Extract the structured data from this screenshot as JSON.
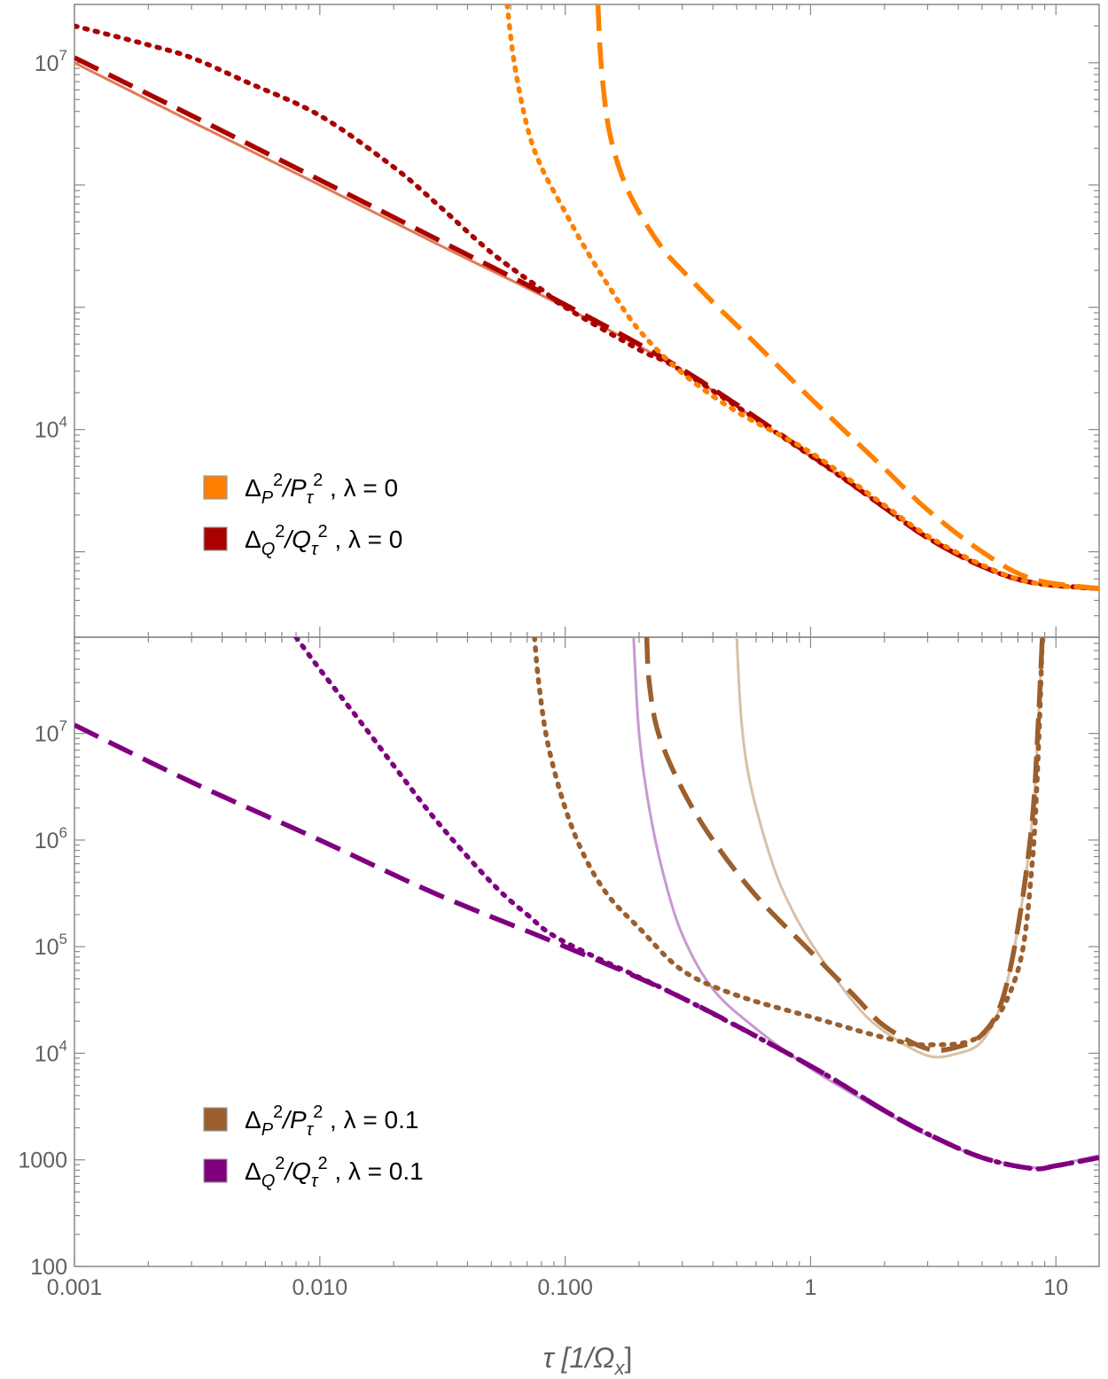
{
  "chart_data": [
    {
      "panel": "top",
      "type": "line",
      "xscale": "log",
      "yscale": "log",
      "xlim": [
        0.001,
        15
      ],
      "ylim": [
        200,
        30000000
      ],
      "x_ticks": [
        "0.001",
        "0.010",
        "0.100",
        "1",
        "10"
      ],
      "y_tick_labels": [
        {
          "value": 10000000,
          "base": "10",
          "exp": "7"
        },
        {
          "value": 10000,
          "base": "10",
          "exp": "4"
        }
      ],
      "legend": [
        {
          "label_base": "Δ",
          "label_sub": "P",
          "label_sup": "2",
          "label_den": "/P",
          "label_den_sub": "τ",
          "label_den_sup": "2",
          "label_param": " , λ = 0",
          "color": "#ff8000"
        },
        {
          "label_base": "Δ",
          "label_sub": "Q",
          "label_sup": "2",
          "label_den": "/Q",
          "label_den_sub": "τ",
          "label_den_sup": "2",
          "label_param": " , λ = 0",
          "color": "#aa0000"
        }
      ],
      "series": [
        {
          "name": "reference solid",
          "color": "#e07a5a",
          "style": "solid",
          "x": [
            0.001,
            0.003,
            0.01,
            0.03,
            0.1,
            0.3,
            1,
            2,
            3,
            5,
            8,
            15
          ],
          "y": [
            10000000,
            3300000,
            1000000,
            330000,
            100000,
            30000,
            6000,
            2300,
            1300,
            750,
            550,
            500
          ]
        },
        {
          "name": "Q dashed",
          "color": "#aa0000",
          "style": "dashed",
          "x": [
            0.001,
            0.003,
            0.01,
            0.03,
            0.1,
            0.3,
            1,
            2,
            3,
            5,
            8,
            15
          ],
          "y": [
            11000000,
            3700000,
            1100000,
            360000,
            105000,
            31000,
            6200,
            2300,
            1300,
            760,
            560,
            500
          ]
        },
        {
          "name": "Q dotted",
          "color": "#aa0000",
          "style": "dotted",
          "x": [
            0.001,
            0.002,
            0.003,
            0.005,
            0.01,
            0.02,
            0.03,
            0.05,
            0.08,
            0.1,
            0.2,
            0.3,
            1,
            2,
            3,
            5,
            8,
            15
          ],
          "y": [
            20000000,
            14000000,
            11000000,
            7000000,
            3700000,
            1400000,
            700000,
            280000,
            140000,
            100000,
            45000,
            30000,
            6100,
            2300,
            1300,
            760,
            560,
            500
          ]
        },
        {
          "name": "P dotted",
          "color": "#ff8000",
          "style": "dotted",
          "x": [
            0.058,
            0.062,
            0.07,
            0.08,
            0.1,
            0.12,
            0.15,
            0.2,
            0.3,
            0.5,
            1,
            2,
            3,
            5,
            8,
            15
          ],
          "y": [
            30000000,
            10000000,
            3000000,
            1400000,
            600000,
            310000,
            150000,
            65000,
            29000,
            14000,
            6500,
            2400,
            1350,
            780,
            560,
            500
          ]
        },
        {
          "name": "P dashed",
          "color": "#ff8000",
          "style": "dashed",
          "x": [
            0.136,
            0.14,
            0.15,
            0.17,
            0.2,
            0.25,
            0.3,
            0.4,
            0.6,
            1,
            2,
            3,
            5,
            8,
            15
          ],
          "y": [
            30000000,
            10000000,
            3000000,
            1200000,
            600000,
            300000,
            200000,
            110000,
            50000,
            18000,
            4800,
            2200,
            1000,
            600,
            500
          ]
        }
      ]
    },
    {
      "panel": "bottom",
      "type": "line",
      "xscale": "log",
      "yscale": "log",
      "xlim": [
        0.001,
        15
      ],
      "ylim": [
        100,
        80000000
      ],
      "x_ticks": [
        "0.001",
        "0.010",
        "0.100",
        "1",
        "10"
      ],
      "y_tick_labels": [
        {
          "value": 10000000,
          "base": "10",
          "exp": "7"
        },
        {
          "value": 1000000,
          "base": "10",
          "exp": "6"
        },
        {
          "value": 100000,
          "base": "10",
          "exp": "5"
        },
        {
          "value": 10000,
          "base": "10",
          "exp": "4"
        },
        {
          "value": 1000,
          "base": "1000",
          "exp": ""
        },
        {
          "value": 100,
          "base": "100",
          "exp": ""
        }
      ],
      "legend": [
        {
          "label_base": "Δ",
          "label_sub": "P",
          "label_sup": "2",
          "label_den": "/P",
          "label_den_sub": "τ",
          "label_den_sup": "2",
          "label_param": " , λ = 0.1",
          "color": "#9b5f2e"
        },
        {
          "label_base": "Δ",
          "label_sub": "Q",
          "label_sup": "2",
          "label_den": "/Q",
          "label_den_sub": "τ",
          "label_den_sup": "2",
          "label_param": " , λ = 0.1",
          "color": "#7f007f"
        }
      ],
      "series": [
        {
          "name": "Q solid light",
          "color": "#c899d1",
          "style": "solid",
          "x": [
            0.19,
            0.2,
            0.22,
            0.25,
            0.3,
            0.4,
            0.6,
            1,
            2,
            3,
            5,
            8,
            10,
            15
          ],
          "y": [
            80000000,
            10000000,
            2000000,
            500000,
            130000,
            40000,
            17000,
            7200,
            2800,
            1700,
            1050,
            850,
            900,
            1100
          ]
        },
        {
          "name": "P solid light",
          "color": "#d9c0a6",
          "style": "solid",
          "x": [
            0.5,
            0.52,
            0.55,
            0.6,
            0.7,
            0.8,
            1,
            1.5,
            2,
            3,
            4,
            5,
            6,
            7,
            8,
            8.5,
            8.8
          ],
          "y": [
            80000000,
            15000000,
            5000000,
            2000000,
            600000,
            280000,
            110000,
            30000,
            16000,
            9500,
            10000,
            13000,
            30000,
            150000,
            1500000,
            15000000,
            80000000
          ]
        },
        {
          "name": "Q dashed",
          "color": "#7f007f",
          "style": "dashed",
          "x": [
            0.001,
            0.003,
            0.01,
            0.03,
            0.1,
            0.3,
            1,
            2,
            3,
            5,
            8,
            10,
            15
          ],
          "y": [
            12000000,
            3500000,
            1000000,
            310000,
            100000,
            33000,
            7600,
            2900,
            1750,
            1050,
            830,
            880,
            1050
          ]
        },
        {
          "name": "Q dotted",
          "color": "#7f007f",
          "style": "dotted",
          "x": [
            0.008,
            0.01,
            0.015,
            0.02,
            0.03,
            0.05,
            0.07,
            0.1,
            0.3,
            1,
            2,
            3,
            5,
            8,
            10,
            15
          ],
          "y": [
            80000000,
            40000000,
            12000000,
            5000000,
            1500000,
            400000,
            200000,
            110000,
            33000,
            7600,
            2900,
            1750,
            1050,
            830,
            880,
            1050
          ]
        },
        {
          "name": "P dotted",
          "color": "#9b5f2e",
          "style": "dotted",
          "x": [
            0.075,
            0.078,
            0.085,
            0.1,
            0.12,
            0.15,
            0.2,
            0.3,
            0.5,
            1,
            2,
            3,
            5,
            7,
            8,
            8.5,
            8.8
          ],
          "y": [
            80000000,
            30000000,
            8000000,
            2000000,
            700000,
            300000,
            150000,
            60000,
            35000,
            22000,
            14000,
            12000,
            15000,
            60000,
            600000,
            8000000,
            80000000
          ]
        },
        {
          "name": "P dashed",
          "color": "#9b5f2e",
          "style": "dashed",
          "x": [
            0.215,
            0.22,
            0.24,
            0.3,
            0.4,
            0.6,
            1,
            1.5,
            2,
            3,
            4,
            5,
            6,
            7,
            8,
            8.5,
            8.8
          ],
          "y": [
            80000000,
            30000000,
            10000000,
            3000000,
            1000000,
            300000,
            90000,
            35000,
            18000,
            11000,
            11500,
            15000,
            30000,
            150000,
            1500000,
            15000000,
            80000000
          ]
        }
      ]
    }
  ],
  "x_axis_title": {
    "main": "τ [1/Ω",
    "sub": "x",
    "close": "]"
  }
}
